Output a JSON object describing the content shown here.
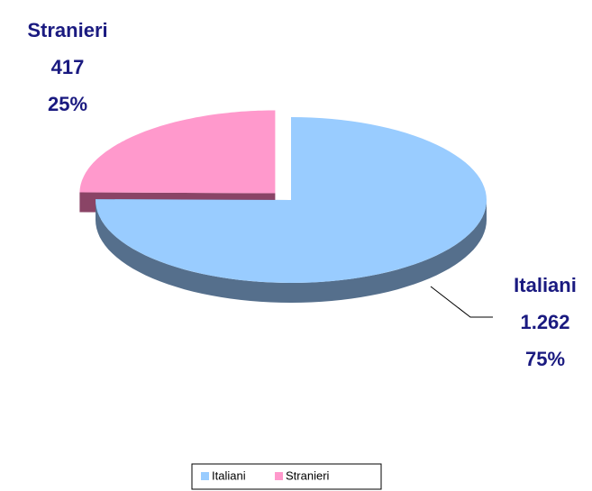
{
  "chart_data": {
    "type": "pie3d",
    "categories": [
      "Italiani",
      "Stranieri"
    ],
    "values": [
      1262,
      417
    ],
    "value_labels": [
      "1.262",
      "417"
    ],
    "percent_labels": [
      "75%",
      "25%"
    ],
    "colors": [
      "#99ccff",
      "#ff99cc"
    ],
    "side_colors": [
      "#556f8c",
      "#8a4466"
    ],
    "exploded": [
      false,
      true
    ],
    "legend": "bottom"
  }
}
